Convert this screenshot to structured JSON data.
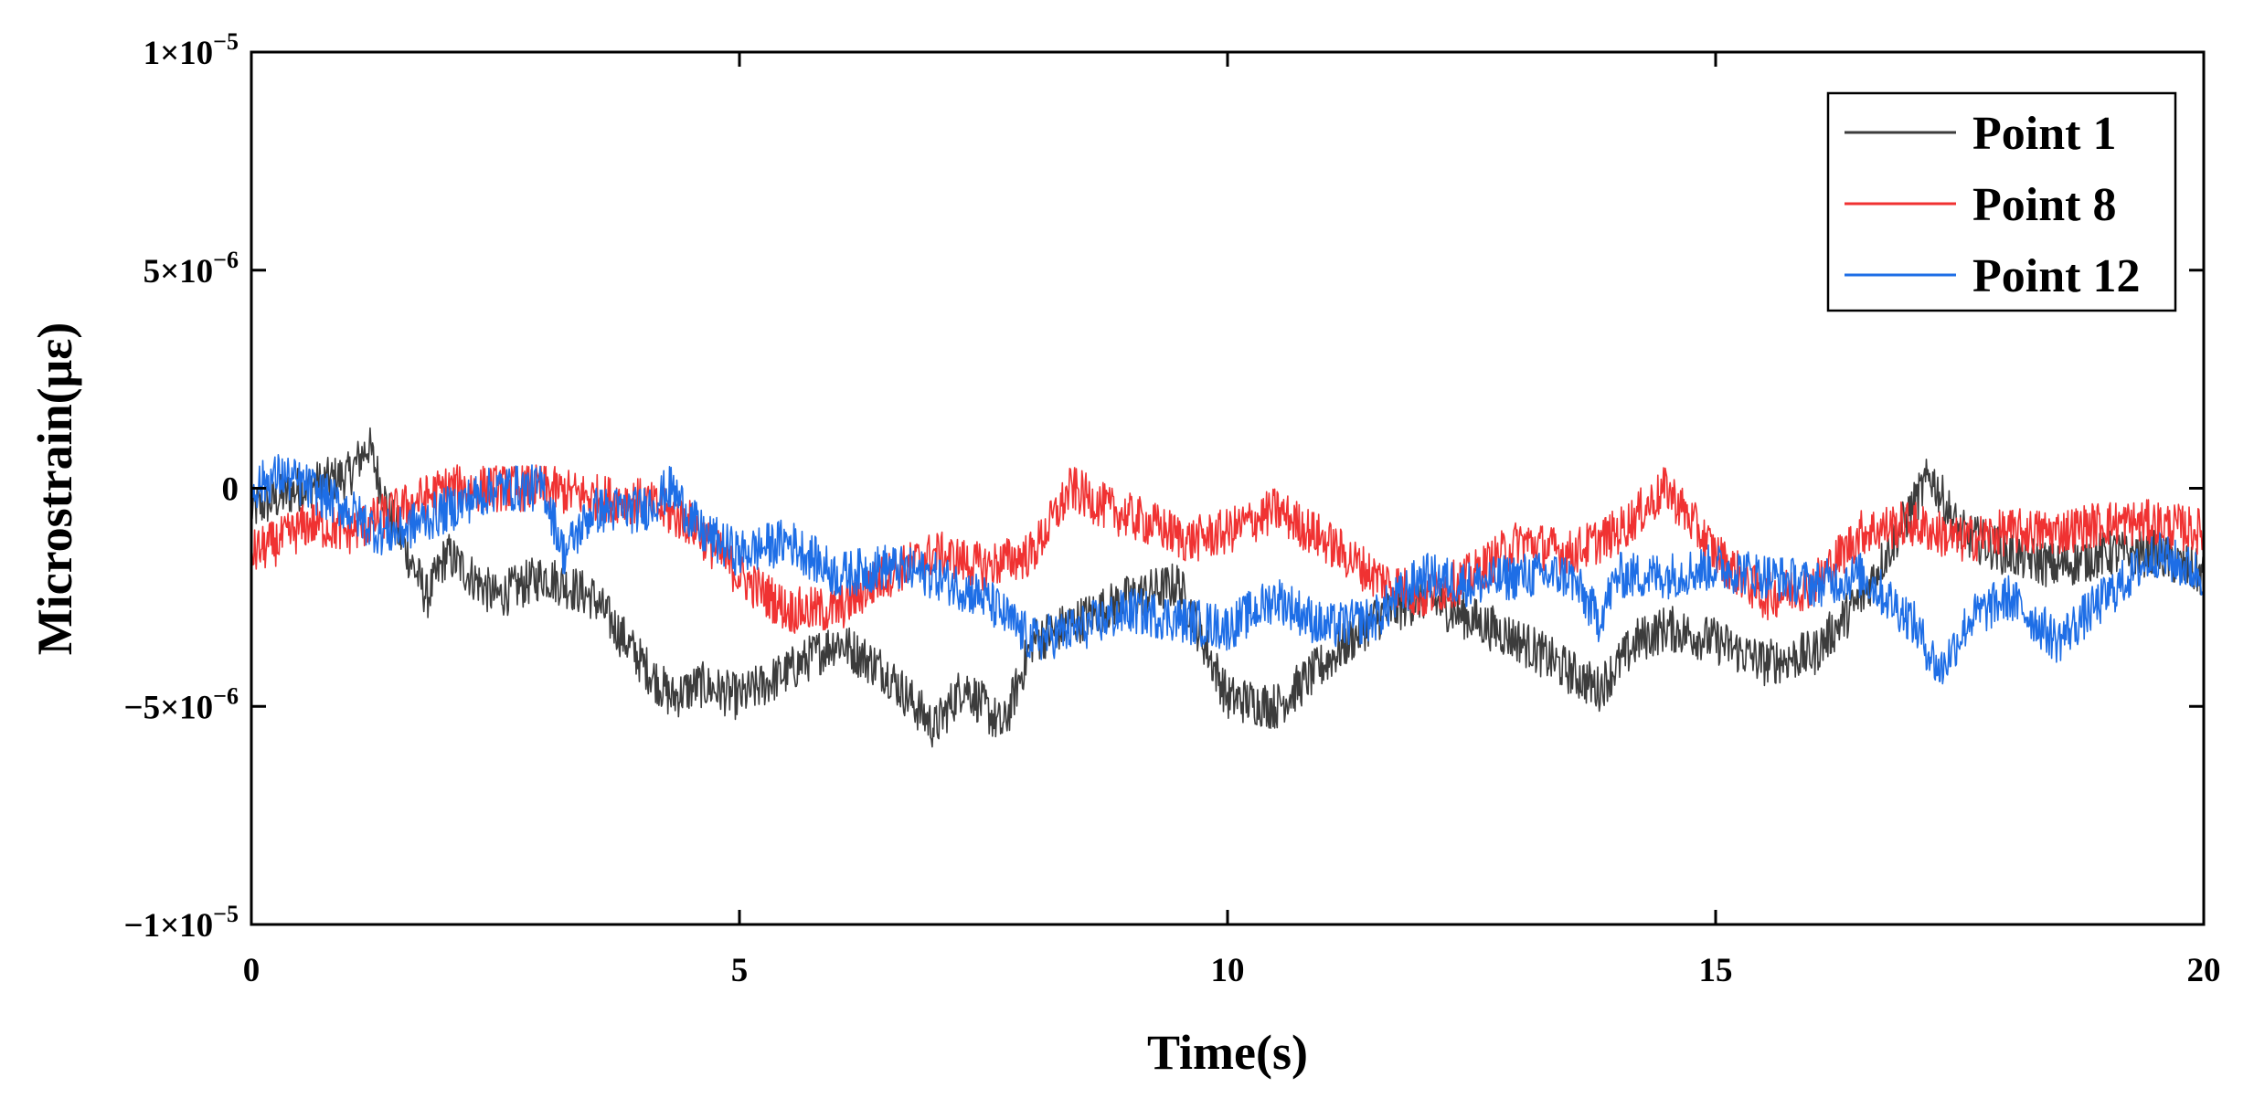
{
  "chart_data": {
    "type": "line",
    "title": "",
    "xlabel": "Time(s)",
    "ylabel": "Microstrain(με)",
    "xlim": [
      0,
      20
    ],
    "ylim": [
      -1e-05,
      1e-05
    ],
    "x_ticks": [
      {
        "value": 0,
        "label": "0"
      },
      {
        "value": 5,
        "label": "5"
      },
      {
        "value": 10,
        "label": "10"
      },
      {
        "value": 15,
        "label": "15"
      },
      {
        "value": 20,
        "label": "20"
      }
    ],
    "y_ticks": [
      {
        "value": 1e-05,
        "label": "1×10",
        "exp": "−5"
      },
      {
        "value": 5e-06,
        "label": "5×10",
        "exp": "−6"
      },
      {
        "value": 0,
        "label": "0",
        "exp": ""
      },
      {
        "value": -5e-06,
        "label": "−5×10",
        "exp": "−6"
      },
      {
        "value": -1e-05,
        "label": "−1×10",
        "exp": "−5"
      }
    ],
    "grid": false,
    "legend_position": "top-right",
    "noise_amplitude": 6e-07,
    "series": [
      {
        "name": "Point 1",
        "color": "#3c3c3c",
        "x": [
          0,
          0.5,
          1.0,
          1.2,
          1.4,
          1.6,
          1.8,
          2.0,
          2.5,
          3.0,
          3.5,
          4.0,
          4.3,
          4.6,
          5.0,
          5.5,
          6.0,
          6.5,
          7.0,
          7.3,
          7.7,
          8.0,
          8.5,
          9.0,
          9.5,
          10.0,
          10.5,
          11.0,
          11.5,
          12.0,
          12.5,
          13.0,
          13.5,
          13.8,
          14.2,
          14.5,
          15.0,
          15.5,
          16.0,
          16.5,
          17.0,
          17.2,
          17.5,
          18.0,
          18.5,
          19.0,
          19.5,
          20.0
        ],
        "y": [
          -5e-07,
          0,
          3e-07,
          1e-06,
          -5e-07,
          -1.5e-06,
          -2.5e-06,
          -1.5e-06,
          -2.5e-06,
          -2e-06,
          -2.5e-06,
          -4e-06,
          -4.8e-06,
          -4.5e-06,
          -4.8e-06,
          -4.2e-06,
          -3.5e-06,
          -4.2e-06,
          -5.5e-06,
          -4.5e-06,
          -5.5e-06,
          -3.5e-06,
          -3e-06,
          -2.5e-06,
          -2.2e-06,
          -4.8e-06,
          -5e-06,
          -4e-06,
          -3e-06,
          -2.5e-06,
          -3e-06,
          -3.5e-06,
          -4.2e-06,
          -4.6e-06,
          -3.5e-06,
          -3.2e-06,
          -3.5e-06,
          -4e-06,
          -3.8e-06,
          -2.5e-06,
          -5e-07,
          3e-07,
          -1e-06,
          -1.5e-06,
          -1.8e-06,
          -1.5e-06,
          -1.5e-06,
          -2e-06
        ]
      },
      {
        "name": "Point 8",
        "color": "#f03232",
        "x": [
          0,
          0.3,
          0.6,
          1.0,
          1.5,
          2.0,
          2.5,
          3.0,
          3.5,
          4.0,
          4.5,
          5.0,
          5.5,
          6.0,
          6.5,
          7.0,
          7.5,
          8.0,
          8.4,
          8.8,
          9.2,
          9.6,
          10.0,
          10.5,
          11.0,
          11.5,
          12.0,
          12.5,
          13.0,
          13.5,
          14.0,
          14.5,
          15.0,
          15.5,
          16.0,
          16.5,
          17.0,
          17.5,
          18.0,
          18.5,
          19.0,
          19.5,
          20.0
        ],
        "y": [
          -1.5e-06,
          -1.2e-06,
          -8e-07,
          -1e-06,
          -5e-07,
          0,
          0,
          0,
          -2e-07,
          -3e-07,
          -8e-07,
          -2e-06,
          -2.8e-06,
          -2.8e-06,
          -2e-06,
          -1.5e-06,
          -1.8e-06,
          -1.5e-06,
          0,
          -5e-07,
          -8e-07,
          -1.2e-06,
          -1e-06,
          -5e-07,
          -1.2e-06,
          -2e-06,
          -2.5e-06,
          -2e-06,
          -1.2e-06,
          -1.5e-06,
          -1e-06,
          0,
          -1.5e-06,
          -2.5e-06,
          -2.2e-06,
          -1e-06,
          -8e-07,
          -1.2e-06,
          -1e-06,
          -1e-06,
          -8e-07,
          -8e-07,
          -1e-06
        ]
      },
      {
        "name": "Point 12",
        "color": "#1e6ee6",
        "x": [
          0,
          0.3,
          0.6,
          1.0,
          1.3,
          1.5,
          2.0,
          2.5,
          3.0,
          3.2,
          3.5,
          4.0,
          4.3,
          4.6,
          5.0,
          5.5,
          6.0,
          6.5,
          7.0,
          7.5,
          8.0,
          8.5,
          9.0,
          9.5,
          10.0,
          10.5,
          11.0,
          11.5,
          12.0,
          12.5,
          13.0,
          13.5,
          13.8,
          14.0,
          14.5,
          15.0,
          15.5,
          16.0,
          16.5,
          17.0,
          17.3,
          17.6,
          18.0,
          18.5,
          19.0,
          19.5,
          20.0
        ],
        "y": [
          0,
          3e-07,
          0,
          -5e-07,
          -1e-06,
          -1e-06,
          -5e-07,
          0,
          0,
          -1.5e-06,
          -5e-07,
          -5e-07,
          0,
          -1e-06,
          -1.5e-06,
          -1.2e-06,
          -2e-06,
          -1.8e-06,
          -2e-06,
          -2.5e-06,
          -3.5e-06,
          -3.2e-06,
          -2.8e-06,
          -3e-06,
          -3.2e-06,
          -2.5e-06,
          -3.2e-06,
          -3e-06,
          -2e-06,
          -2.2e-06,
          -2e-06,
          -2e-06,
          -3e-06,
          -2e-06,
          -2e-06,
          -1.8e-06,
          -2e-06,
          -2.2e-06,
          -2e-06,
          -3e-06,
          -4.2e-06,
          -3e-06,
          -2.5e-06,
          -3.5e-06,
          -2.5e-06,
          -1.5e-06,
          -2e-06
        ]
      }
    ]
  }
}
